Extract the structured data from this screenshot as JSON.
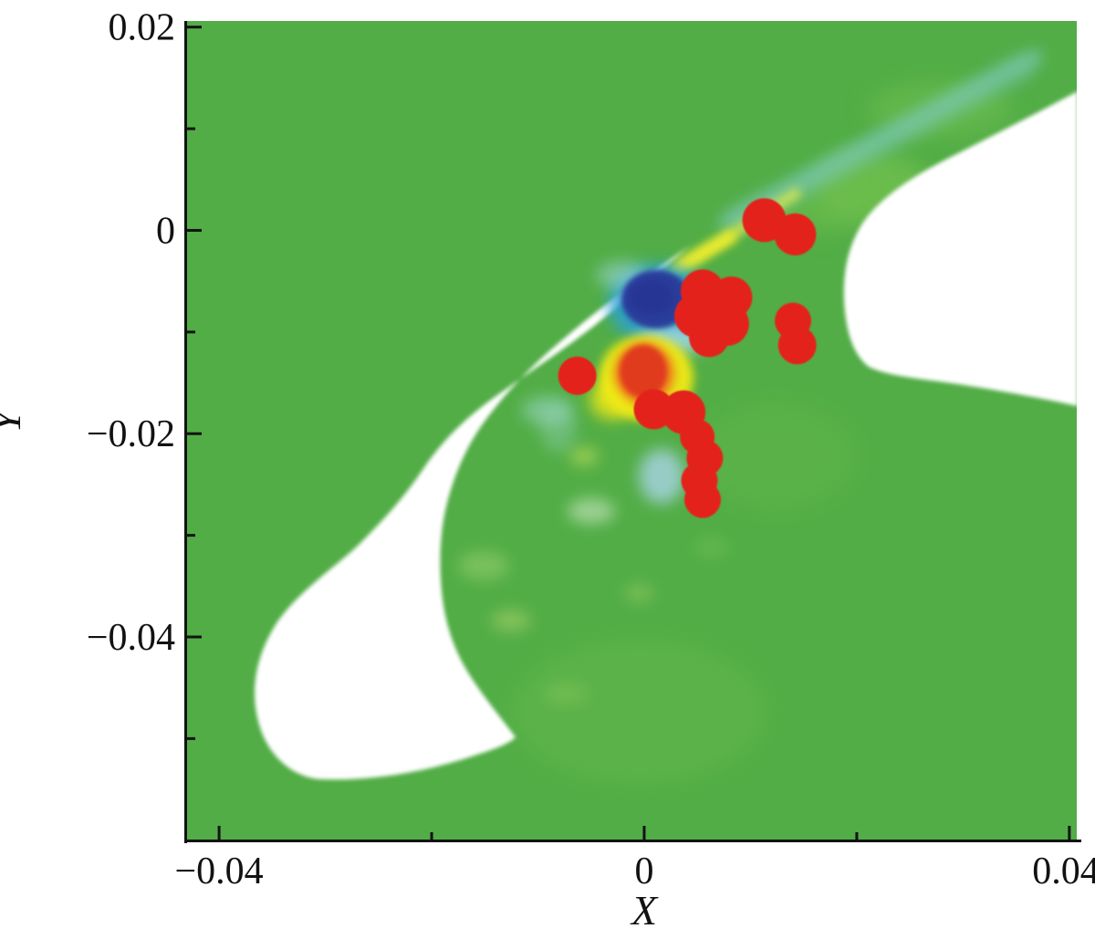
{
  "figure": {
    "xlabel": "X",
    "ylabel": "Y"
  },
  "chart_data": {
    "type": "heatmap",
    "subtype": "contour-field-with-scatter-overlay",
    "title": "",
    "xlabel": "X",
    "ylabel": "Y",
    "xlim": [
      -0.0431,
      0.0407
    ],
    "ylim": [
      -0.0602,
      0.0206
    ],
    "grid": false,
    "legend": null,
    "x_ticks_major": [
      {
        "value": -0.04,
        "label": "−0.04"
      },
      {
        "value": 0,
        "label": "0"
      },
      {
        "value": 0.04,
        "label": "0.04"
      }
    ],
    "x_ticks_minor": [
      -0.02,
      0.02
    ],
    "y_ticks_major": [
      {
        "value": 0.02,
        "label": "0.02"
      },
      {
        "value": 0,
        "label": "0"
      },
      {
        "value": -0.02,
        "label": "−0.02"
      },
      {
        "value": -0.04,
        "label": "−0.04"
      }
    ],
    "y_ticks_minor": [
      0.01,
      -0.01,
      -0.03,
      -0.05
    ],
    "series": [
      {
        "name": "event-locations",
        "type": "scatter",
        "marker": "circle",
        "color": "#e3241d",
        "points": [
          {
            "x": 0.0113,
            "y": 0.001,
            "r": 24
          },
          {
            "x": 0.0142,
            "y": -0.0004,
            "r": 23
          },
          {
            "x": 0.0055,
            "y": -0.006,
            "r": 24
          },
          {
            "x": 0.0082,
            "y": -0.0066,
            "r": 23
          },
          {
            "x": 0.0049,
            "y": -0.0084,
            "r": 24
          },
          {
            "x": 0.0078,
            "y": -0.0092,
            "r": 24
          },
          {
            "x": 0.0061,
            "y": -0.0105,
            "r": 22
          },
          {
            "x": 0.014,
            "y": -0.0089,
            "r": 20
          },
          {
            "x": 0.0144,
            "y": -0.0113,
            "r": 21
          },
          {
            "x": -0.0063,
            "y": -0.0143,
            "r": 21
          },
          {
            "x": 0.0009,
            "y": -0.0176,
            "r": 22
          },
          {
            "x": 0.0037,
            "y": -0.0179,
            "r": 24
          },
          {
            "x": 0.005,
            "y": -0.0203,
            "r": 19
          },
          {
            "x": 0.0057,
            "y": -0.0224,
            "r": 20
          },
          {
            "x": 0.0052,
            "y": -0.0246,
            "r": 20
          },
          {
            "x": 0.0055,
            "y": -0.0265,
            "r": 20
          }
        ]
      }
    ],
    "field_features": [
      {
        "name": "background-field",
        "color": "#52ad46",
        "description": "uniform green contour level filling the plot"
      },
      {
        "name": "masked-blade-region",
        "color": "#ffffff",
        "description": "white curved blade/crescent from tip near (0.004,-0.001) widening down-left to (-0.031,-0.054), with horn tip at (-0.012,-0.050)"
      },
      {
        "name": "masked-right-region",
        "color": "#ffffff",
        "description": "white rounded region attached to right edge, x 0.019 to 0.041, y -0.017 to 0.013"
      },
      {
        "name": "vortex-core",
        "color": "#2c3e9b",
        "x": 0.0014,
        "y": -0.0069,
        "description": "dark blue blob with cyan halo"
      },
      {
        "name": "hot-spot",
        "color": "#e03a1e",
        "x": 0.0001,
        "y": -0.0141,
        "description": "red core with orange ring and yellow halo"
      },
      {
        "name": "shear-streak",
        "color": "#7cc8b2",
        "description": "pale cyan diagonal streak in upper right green field"
      },
      {
        "name": "yellow-streak",
        "color": "#e9ef45",
        "description": "faint yellow streak along upper edge of white blade tip"
      }
    ]
  },
  "colors": {
    "background_green": "#52ad46",
    "light_green": "#6fc04e",
    "mask_white": "#ffffff",
    "cyan_streak": "#7cc8b2",
    "pale_blue": "#a9d4e6",
    "pale_cyan": "#9fd8cc",
    "pale_mint": "#cde9c6",
    "pale_yellow": "#dcea60",
    "vortex_blue": "#2c3e9b",
    "vortex_blue_dark": "#273693",
    "vortex_cyan": "#2ba0d6",
    "vortex_pale": "#a6dbe8",
    "hot_yellow": "#f0e915",
    "hot_orange": "#ee7c1c",
    "hot_red": "#e03a1e",
    "dot_red": "#e3241d",
    "axis_black": "#121212"
  }
}
